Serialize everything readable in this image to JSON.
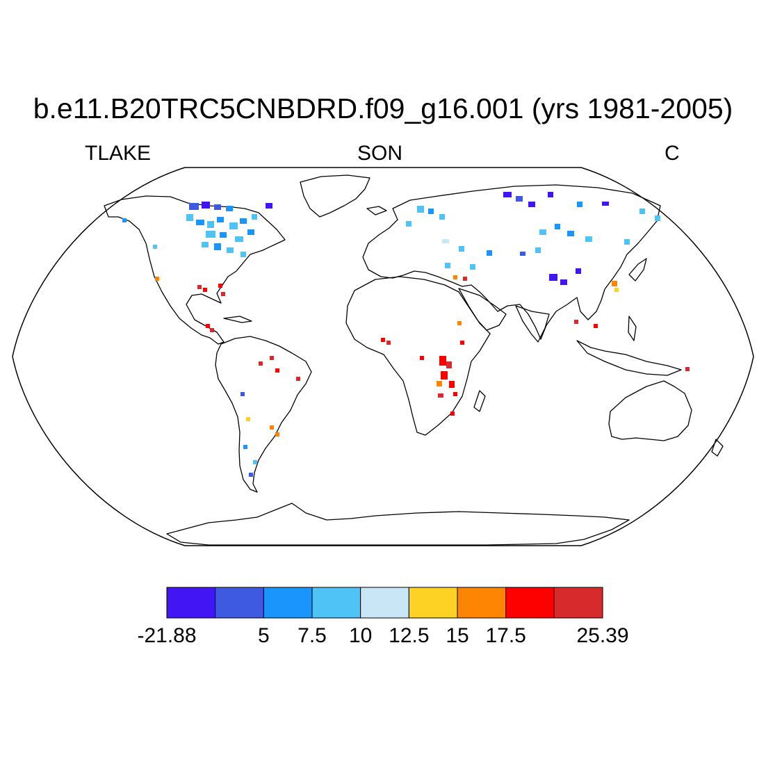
{
  "title": "b.e11.B20TRC5CNBDRD.f09_g16.001 (yrs 1981-2005)",
  "subtitle_left": "TLAKE",
  "subtitle_center": "SON",
  "subtitle_right": "C",
  "colorbar": {
    "colors": [
      "#4215f4",
      "#3e5ae0",
      "#1a95fb",
      "#4fc3f5",
      "#c8e6f6",
      "#fdd224",
      "#fd8503",
      "#fd0000",
      "#d72a2d"
    ],
    "tick_labels": [
      "-21.88",
      "5",
      "7.5",
      "10",
      "12.5",
      "15",
      "17.5",
      "25.39"
    ]
  },
  "map": {
    "projection": "robinson",
    "field": "lake temperature, September-November mean"
  }
}
